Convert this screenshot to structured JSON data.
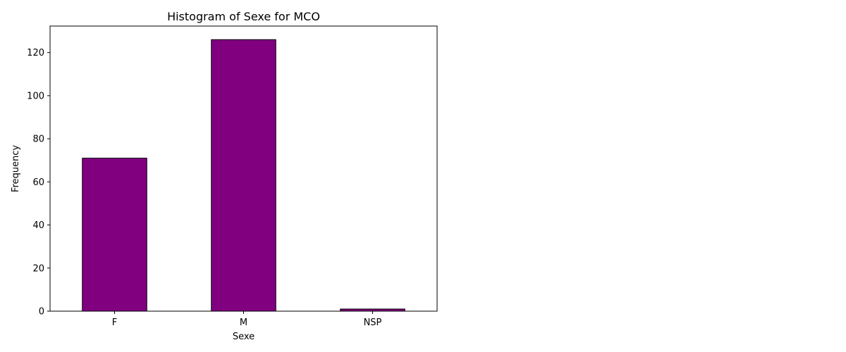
{
  "chart_data": {
    "type": "bar",
    "title": "Histogram of Sexe for MCO",
    "xlabel": "Sexe",
    "ylabel": "Frequency",
    "categories": [
      "F",
      "M",
      "NSP"
    ],
    "values": [
      71,
      126,
      1
    ],
    "ylim": [
      0,
      132.3
    ],
    "yticks": [
      0,
      20,
      40,
      60,
      80,
      100,
      120
    ],
    "bar_color": "#800080",
    "edge_color": "#000000",
    "grid": false,
    "legend": "none"
  }
}
